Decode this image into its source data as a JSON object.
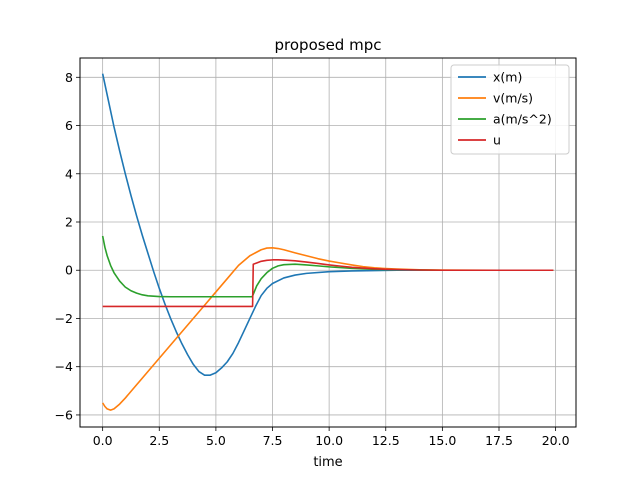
{
  "chart_data": {
    "type": "line",
    "title": "proposed mpc",
    "xlabel": "time",
    "ylabel": "",
    "xlim": [
      -1.0,
      20.9
    ],
    "ylim": [
      -6.5,
      8.8
    ],
    "grid": true,
    "legend_position": "top-right",
    "x_ticks": [
      0.0,
      2.5,
      5.0,
      7.5,
      10.0,
      12.5,
      15.0,
      17.5,
      20.0
    ],
    "x_tick_labels": [
      "0.0",
      "2.5",
      "5.0",
      "7.5",
      "10.0",
      "12.5",
      "15.0",
      "17.5",
      "20.0"
    ],
    "y_ticks": [
      -6,
      -4,
      -2,
      0,
      2,
      4,
      6,
      8
    ],
    "y_tick_labels": [
      "−6",
      "−4",
      "−2",
      "0",
      "2",
      "4",
      "6",
      "8"
    ],
    "series": [
      {
        "name": "x(m)",
        "color": "#1f77b4",
        "points": [
          [
            0,
            8.15
          ],
          [
            0.25,
            7.05
          ],
          [
            0.5,
            5.95
          ],
          [
            0.75,
            4.95
          ],
          [
            1.0,
            4.0
          ],
          [
            1.25,
            3.1
          ],
          [
            1.5,
            2.25
          ],
          [
            1.75,
            1.45
          ],
          [
            2.0,
            0.7
          ],
          [
            2.25,
            -0.05
          ],
          [
            2.5,
            -0.75
          ],
          [
            2.75,
            -1.4
          ],
          [
            3.0,
            -2.0
          ],
          [
            3.25,
            -2.55
          ],
          [
            3.5,
            -3.05
          ],
          [
            3.75,
            -3.5
          ],
          [
            4.0,
            -3.9
          ],
          [
            4.25,
            -4.2
          ],
          [
            4.5,
            -4.35
          ],
          [
            4.75,
            -4.35
          ],
          [
            5.0,
            -4.25
          ],
          [
            5.25,
            -4.05
          ],
          [
            5.5,
            -3.8
          ],
          [
            5.75,
            -3.45
          ],
          [
            6.0,
            -3.0
          ],
          [
            6.25,
            -2.5
          ],
          [
            6.5,
            -2.0
          ],
          [
            6.75,
            -1.5
          ],
          [
            7.0,
            -1.05
          ],
          [
            7.25,
            -0.75
          ],
          [
            7.5,
            -0.55
          ],
          [
            8.0,
            -0.32
          ],
          [
            8.5,
            -0.2
          ],
          [
            9.0,
            -0.13
          ],
          [
            10.0,
            -0.06
          ],
          [
            11.0,
            -0.03
          ],
          [
            12.0,
            -0.015
          ],
          [
            13.0,
            0.0
          ],
          [
            15.0,
            0.0
          ],
          [
            17.5,
            0.0
          ],
          [
            19.9,
            0.0
          ]
        ]
      },
      {
        "name": "v(m/s)",
        "color": "#ff7f0e",
        "points": [
          [
            0,
            -5.5
          ],
          [
            0.1,
            -5.65
          ],
          [
            0.2,
            -5.75
          ],
          [
            0.35,
            -5.8
          ],
          [
            0.5,
            -5.75
          ],
          [
            0.75,
            -5.55
          ],
          [
            1.0,
            -5.3
          ],
          [
            1.5,
            -4.75
          ],
          [
            2.0,
            -4.2
          ],
          [
            2.5,
            -3.65
          ],
          [
            3.0,
            -3.1
          ],
          [
            3.5,
            -2.55
          ],
          [
            4.0,
            -2.0
          ],
          [
            4.5,
            -1.45
          ],
          [
            5.0,
            -0.9
          ],
          [
            5.5,
            -0.35
          ],
          [
            6.0,
            0.2
          ],
          [
            6.5,
            0.6
          ],
          [
            7.0,
            0.85
          ],
          [
            7.25,
            0.92
          ],
          [
            7.5,
            0.93
          ],
          [
            7.75,
            0.9
          ],
          [
            8.0,
            0.85
          ],
          [
            8.5,
            0.72
          ],
          [
            9.0,
            0.6
          ],
          [
            9.5,
            0.48
          ],
          [
            10.0,
            0.38
          ],
          [
            10.5,
            0.3
          ],
          [
            11.0,
            0.22
          ],
          [
            11.5,
            0.15
          ],
          [
            12.0,
            0.1
          ],
          [
            12.5,
            0.07
          ],
          [
            13.0,
            0.05
          ],
          [
            14.0,
            0.02
          ],
          [
            15.0,
            0.01
          ],
          [
            17.5,
            0.0
          ],
          [
            19.9,
            0.0
          ]
        ]
      },
      {
        "name": "a(m/s^2)",
        "color": "#2ca02c",
        "points": [
          [
            0,
            1.42
          ],
          [
            0.1,
            0.95
          ],
          [
            0.2,
            0.6
          ],
          [
            0.35,
            0.2
          ],
          [
            0.5,
            -0.1
          ],
          [
            0.75,
            -0.45
          ],
          [
            1.0,
            -0.7
          ],
          [
            1.25,
            -0.85
          ],
          [
            1.5,
            -0.95
          ],
          [
            1.75,
            -1.02
          ],
          [
            2.0,
            -1.06
          ],
          [
            2.5,
            -1.09
          ],
          [
            3.0,
            -1.1
          ],
          [
            4.0,
            -1.1
          ],
          [
            5.0,
            -1.1
          ],
          [
            6.0,
            -1.1
          ],
          [
            6.6,
            -1.1
          ],
          [
            6.65,
            -1.0
          ],
          [
            6.8,
            -0.65
          ],
          [
            7.0,
            -0.35
          ],
          [
            7.25,
            -0.1
          ],
          [
            7.5,
            0.08
          ],
          [
            7.75,
            0.18
          ],
          [
            8.0,
            0.23
          ],
          [
            8.5,
            0.25
          ],
          [
            9.0,
            0.22
          ],
          [
            9.5,
            0.18
          ],
          [
            10.0,
            0.14
          ],
          [
            11.0,
            0.08
          ],
          [
            12.0,
            0.04
          ],
          [
            13.0,
            0.02
          ],
          [
            15.0,
            0.0
          ],
          [
            19.9,
            0.0
          ]
        ]
      },
      {
        "name": "u",
        "color": "#d62728",
        "points": [
          [
            0,
            -1.5
          ],
          [
            2.0,
            -1.5
          ],
          [
            4.0,
            -1.5
          ],
          [
            6.0,
            -1.5
          ],
          [
            6.62,
            -1.5
          ],
          [
            6.65,
            0.25
          ],
          [
            6.8,
            0.3
          ],
          [
            7.0,
            0.37
          ],
          [
            7.25,
            0.41
          ],
          [
            7.5,
            0.43
          ],
          [
            7.75,
            0.43
          ],
          [
            8.0,
            0.42
          ],
          [
            8.5,
            0.39
          ],
          [
            9.0,
            0.34
          ],
          [
            9.5,
            0.28
          ],
          [
            10.0,
            0.22
          ],
          [
            10.5,
            0.17
          ],
          [
            11.0,
            0.12
          ],
          [
            11.5,
            0.09
          ],
          [
            12.0,
            0.06
          ],
          [
            12.5,
            0.04
          ],
          [
            13.0,
            0.03
          ],
          [
            14.0,
            0.01
          ],
          [
            15.0,
            0.0
          ],
          [
            19.9,
            0.0
          ]
        ]
      }
    ]
  }
}
